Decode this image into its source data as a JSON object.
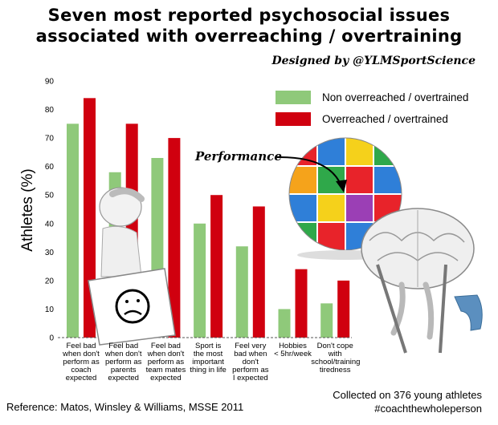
{
  "header": {
    "title_line1": "Seven most reported psychosocial issues",
    "title_line2": "associated with overreaching / overtraining",
    "designed_by": "Designed by @YLMSportScience"
  },
  "annotations": {
    "performance": "Performance"
  },
  "footer": {
    "reference": "Reference: Matos, Winsley & Williams, MSSE 2011",
    "collected": "Collected on 376 young athletes",
    "hashtag": "#coachthewholeperson"
  },
  "colors": {
    "green": "#8fc97a",
    "red": "#d0000f"
  },
  "chart_data": {
    "type": "bar",
    "title": "Seven most reported psychosocial issues associated with overreaching / overtraining",
    "xlabel": "",
    "ylabel": "Athletes (%)",
    "ylim": [
      0,
      90
    ],
    "yticks": [
      0,
      10,
      20,
      30,
      40,
      50,
      60,
      70,
      80,
      90
    ],
    "grid": false,
    "legend_position": "top-right",
    "categories": [
      [
        "Feel bad",
        "when don't",
        "perform as",
        "coach",
        "expected"
      ],
      [
        "Feel bad",
        "when don't",
        "perform as",
        "parents",
        "expected"
      ],
      [
        "Feel bad",
        "when don't",
        "perform as",
        "team mates",
        "expected"
      ],
      [
        "Sport is",
        "the most",
        "important",
        "thing in life"
      ],
      [
        "Feel very",
        "bad when",
        "don't",
        "perform as",
        "I expected"
      ],
      [
        "Hobbies",
        "< 5hr/week"
      ],
      [
        "Don't cope",
        "with",
        "school/training",
        "tiredness"
      ]
    ],
    "series": [
      {
        "name": "Non overreached / overtrained",
        "color": "#8fc97a",
        "values": [
          75,
          58,
          63,
          40,
          32,
          10,
          12
        ]
      },
      {
        "name": "Overreached / overtrained",
        "color": "#d0000f",
        "values": [
          84,
          75,
          70,
          50,
          46,
          24,
          20
        ]
      }
    ]
  }
}
